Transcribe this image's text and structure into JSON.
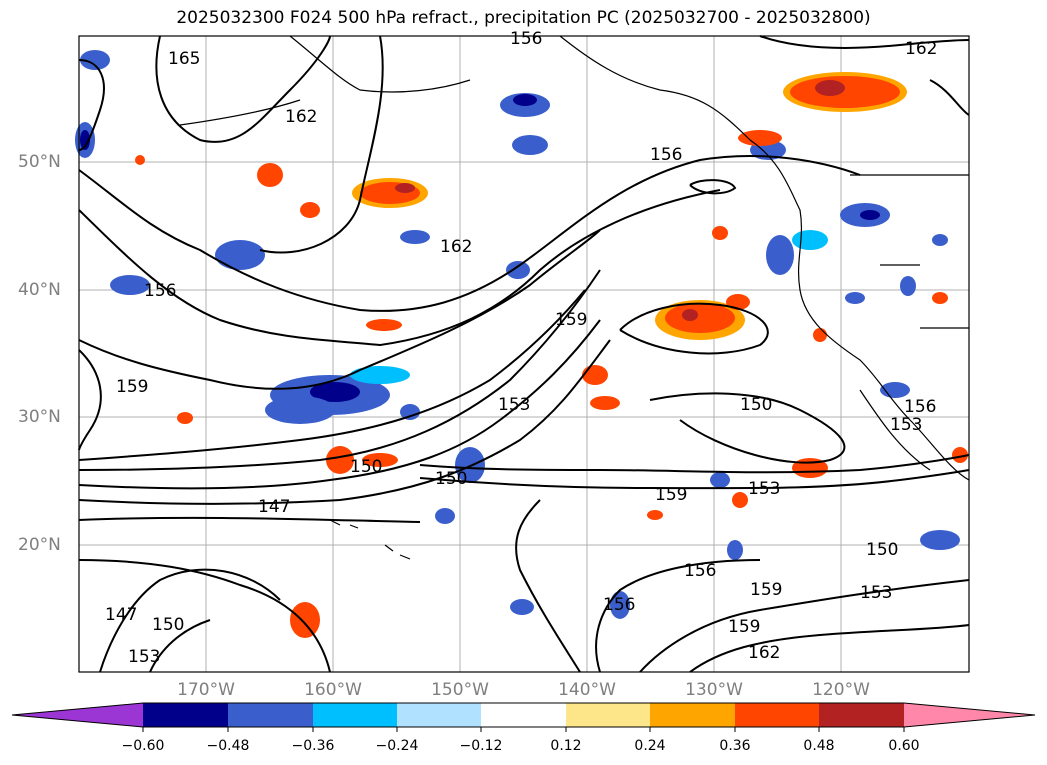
{
  "title": "2025032300 F024 500 hPa refract., precipitation PC (2025032700 - 2025032800)",
  "latitude_labels": [
    "50°N",
    "40°N",
    "30°N",
    "20°N"
  ],
  "longitude_labels": [
    "170°W",
    "160°W",
    "150°W",
    "140°W",
    "130°W",
    "120°W"
  ],
  "contour_labels": [
    "165",
    "162",
    "162",
    "156",
    "156",
    "162",
    "159",
    "159",
    "153",
    "150",
    "150",
    "147",
    "147",
    "150",
    "153",
    "159",
    "156",
    "150",
    "153",
    "156",
    "153",
    "150",
    "153",
    "159",
    "159",
    "162",
    "156",
    "156"
  ],
  "colorbar": {
    "tick_labels": [
      "−0.60",
      "−0.48",
      "−0.36",
      "−0.24",
      "−0.12",
      "0.12",
      "0.24",
      "0.36",
      "0.48",
      "0.60"
    ],
    "colors": [
      "#9b35d4",
      "#00008b",
      "#3a5fcd",
      "#00bfff",
      "#b0e2ff",
      "#ffffff",
      "#fde68a",
      "#ffa500",
      "#ff4500",
      "#b22222",
      "#ff88aa"
    ]
  },
  "colors": {
    "neg_strong": "#3a5fcd",
    "neg_deep": "#00008b",
    "neg_mid": "#00bfff",
    "neg_light": "#b0e2ff",
    "pos_light": "#fde68a",
    "pos_mid": "#ffa500",
    "pos_strong": "#ff4500",
    "pos_deep": "#b22222",
    "grid": "#b0b0b0",
    "tick_text": "#7f7f7f"
  }
}
